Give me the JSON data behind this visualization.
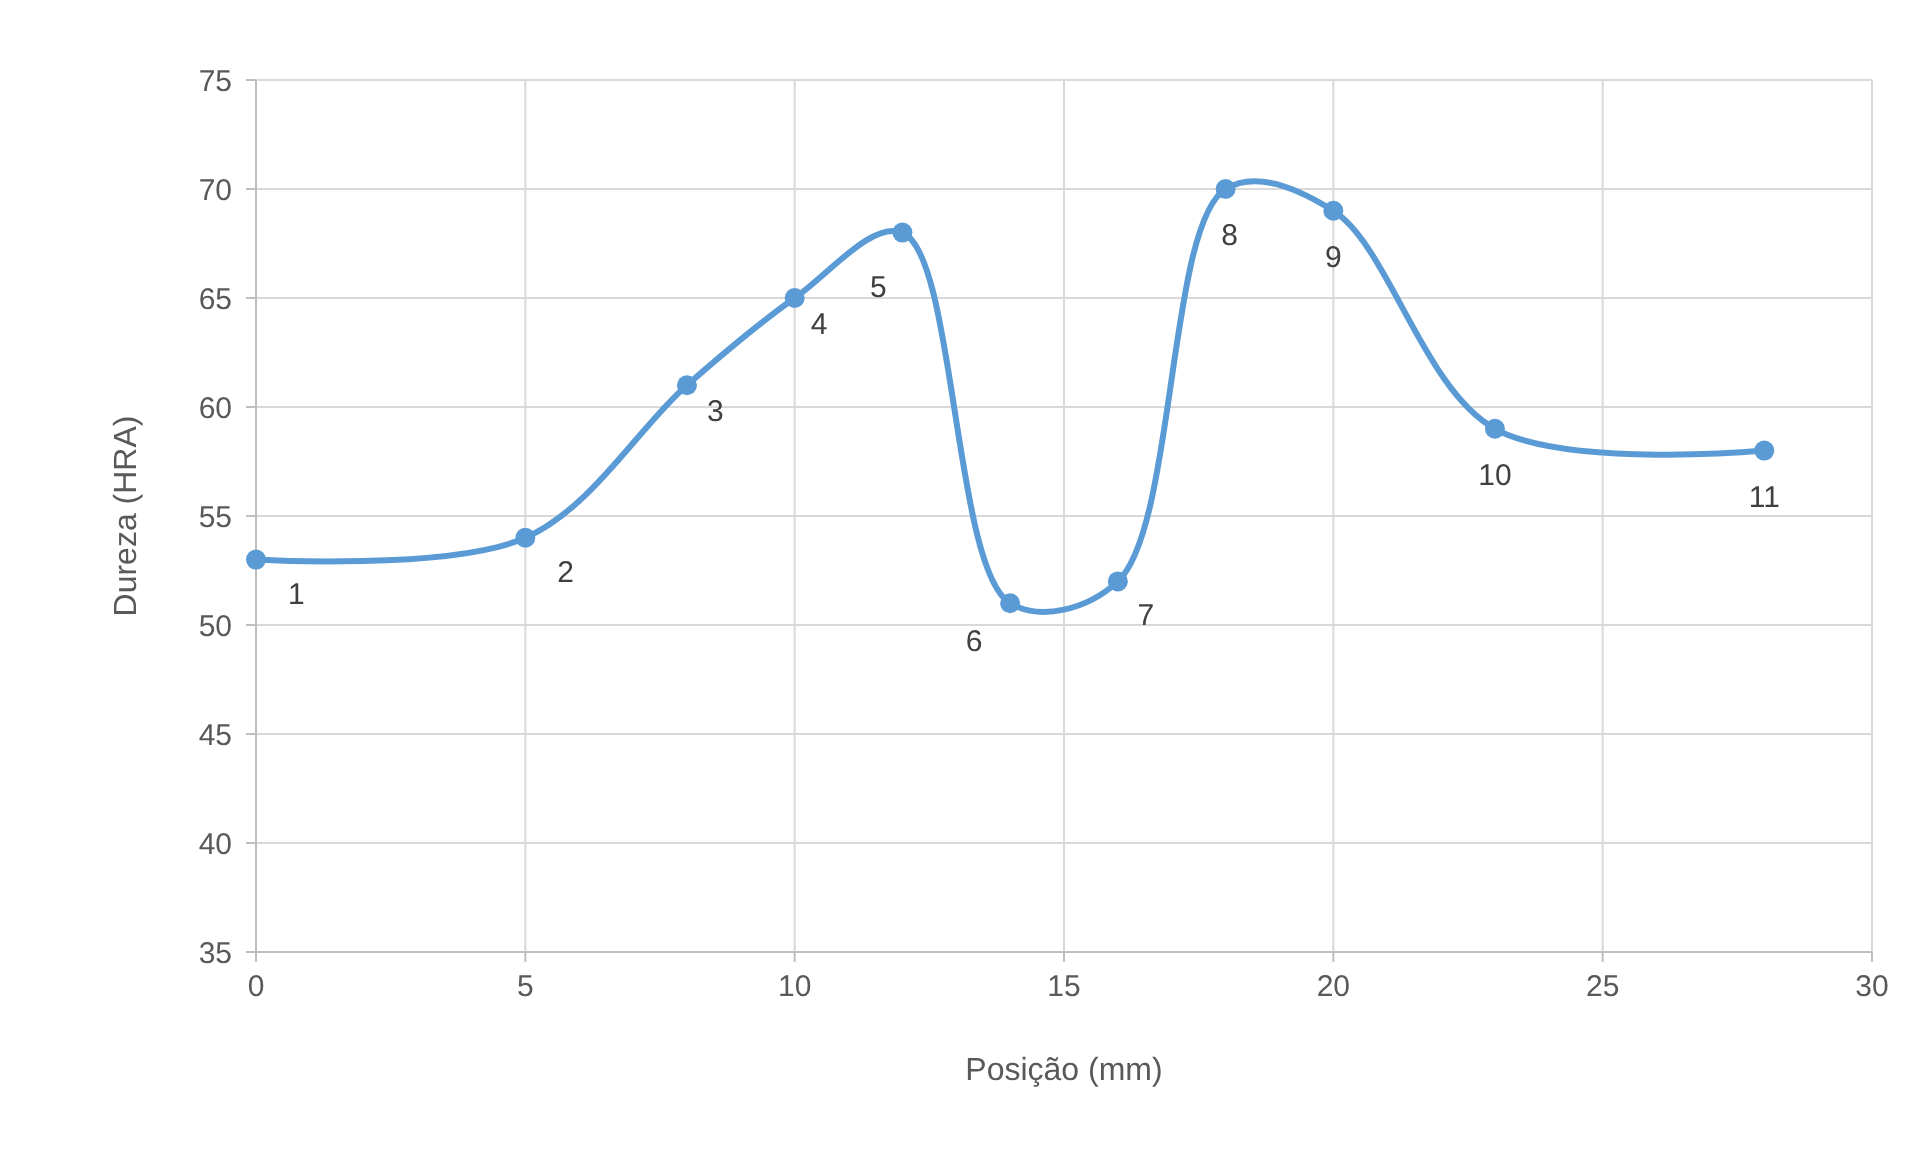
{
  "chart_data": {
    "type": "line",
    "xlabel": "Posição (mm)",
    "ylabel": "Dureza (HRA)",
    "x": [
      0,
      5,
      8,
      10,
      12,
      14,
      16,
      18,
      20,
      23,
      28
    ],
    "series": [
      {
        "color": "#5b9bd5",
        "values": [
          53,
          54,
          61,
          65,
          68,
          51,
          52,
          70,
          69,
          59,
          58
        ]
      }
    ],
    "xlim": [
      0,
      30
    ],
    "xticks": [
      0,
      5,
      10,
      15,
      20,
      25,
      30
    ],
    "ylim": [
      35,
      75
    ],
    "yticks": [
      35,
      40,
      45,
      50,
      55,
      60,
      65,
      70,
      75
    ],
    "grid": true,
    "marker": "circle",
    "line_style": "solid",
    "annotations": [
      {
        "text": "1",
        "x": 0,
        "y": 53
      },
      {
        "text": "2",
        "x": 5,
        "y": 54
      },
      {
        "text": "3",
        "x": 8,
        "y": 61
      },
      {
        "text": "4",
        "x": 10,
        "y": 65
      },
      {
        "text": "5",
        "x": 12,
        "y": 68
      },
      {
        "text": "6",
        "x": 14,
        "y": 51
      },
      {
        "text": "7",
        "x": 16,
        "y": 52
      },
      {
        "text": "8",
        "x": 18,
        "y": 70
      },
      {
        "text": "9",
        "x": 20,
        "y": 69
      },
      {
        "text": "10",
        "x": 23,
        "y": 59
      },
      {
        "text": "11",
        "x": 28,
        "y": 58
      }
    ]
  }
}
